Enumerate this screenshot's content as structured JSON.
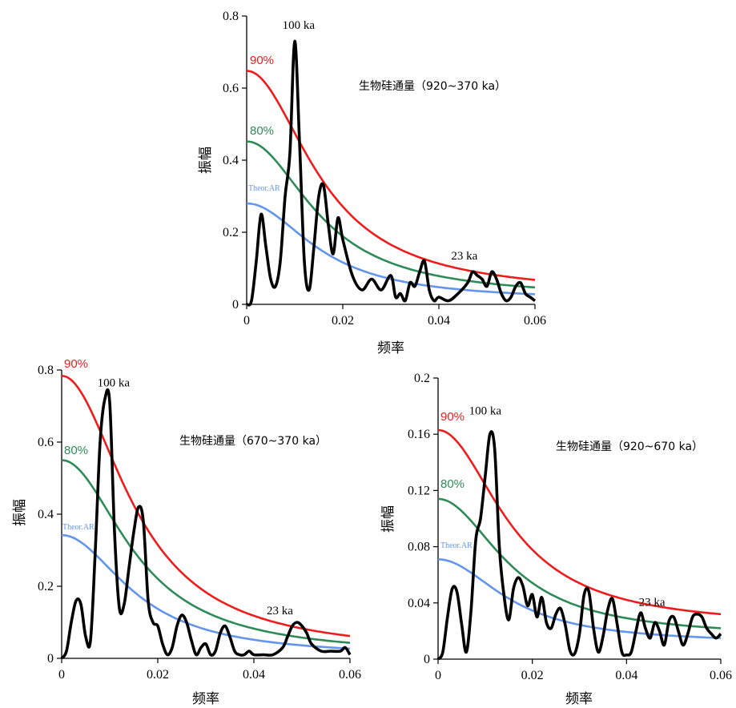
{
  "colors": {
    "spectrum": "#000000",
    "p90": "#ee1c1c",
    "p80": "#2e8b57",
    "theor": "#6495ed"
  },
  "chart_data": [
    {
      "id": "top",
      "type": "line",
      "title": "生物硅通量（920~370 ka）",
      "xlabel": "频率",
      "ylabel": "振幅",
      "xlim": [
        0,
        0.06
      ],
      "ylim": [
        0,
        0.8
      ],
      "xticks": [
        "0",
        "0.02",
        "0.04",
        "0.06"
      ],
      "yticks": [
        "0",
        "0.2",
        "0.4",
        "0.6",
        "0.8"
      ],
      "xtick_values": [
        0,
        0.02,
        0.04,
        0.06
      ],
      "ytick_values": [
        0,
        0.2,
        0.4,
        0.6,
        0.8
      ],
      "series": [
        {
          "name": "spectrum",
          "x": [
            0,
            0.001,
            0.002,
            0.003,
            0.004,
            0.005,
            0.006,
            0.007,
            0.008,
            0.009,
            0.01,
            0.011,
            0.012,
            0.013,
            0.014,
            0.015,
            0.016,
            0.017,
            0.018,
            0.019,
            0.02,
            0.022,
            0.024,
            0.026,
            0.028,
            0.03,
            0.031,
            0.032,
            0.033,
            0.034,
            0.035,
            0.036,
            0.037,
            0.038,
            0.039,
            0.04,
            0.042,
            0.044,
            0.046,
            0.047,
            0.048,
            0.049,
            0.05,
            0.051,
            0.052,
            0.053,
            0.054,
            0.055,
            0.056,
            0.057,
            0.058,
            0.059,
            0.06
          ],
          "values": [
            0,
            0.01,
            0.12,
            0.25,
            0.16,
            0.07,
            0.05,
            0.12,
            0.3,
            0.42,
            0.73,
            0.45,
            0.12,
            0.04,
            0.16,
            0.3,
            0.33,
            0.22,
            0.14,
            0.24,
            0.18,
            0.08,
            0.04,
            0.07,
            0.04,
            0.08,
            0.02,
            0.03,
            0.01,
            0.06,
            0.05,
            0.09,
            0.12,
            0.04,
            0.01,
            0.02,
            0.01,
            0.03,
            0.06,
            0.09,
            0.08,
            0.07,
            0.05,
            0.09,
            0.07,
            0.03,
            0.01,
            0.02,
            0.05,
            0.06,
            0.03,
            0.02,
            0.01
          ]
        },
        {
          "name": "90%",
          "y0": 0.648,
          "yend": 0.068
        },
        {
          "name": "80%",
          "y0": 0.452,
          "yend": 0.047
        },
        {
          "name": "Theor.AR",
          "y0": 0.28,
          "yend": 0.028
        }
      ],
      "annotations": [
        {
          "text": "100 ka",
          "x": 0.0108,
          "y": 0.765
        },
        {
          "text": "23 ka",
          "x": 0.0453,
          "y": 0.125
        }
      ]
    },
    {
      "id": "bottom-left",
      "type": "line",
      "title": "生物硅通量（670~370 ka）",
      "xlabel": "频率",
      "ylabel": "振幅",
      "xlim": [
        0,
        0.06
      ],
      "ylim": [
        0,
        0.8
      ],
      "xticks": [
        "0",
        "0.02",
        "0.04",
        "0.06"
      ],
      "yticks": [
        "0",
        "0.2",
        "0.4",
        "0.6",
        "0.8"
      ],
      "xtick_values": [
        0,
        0.02,
        0.04,
        0.06
      ],
      "ytick_values": [
        0,
        0.2,
        0.4,
        0.6,
        0.8
      ],
      "series": [
        {
          "name": "spectrum",
          "x": [
            0,
            0.001,
            0.002,
            0.003,
            0.004,
            0.005,
            0.006,
            0.007,
            0.008,
            0.009,
            0.01,
            0.011,
            0.012,
            0.013,
            0.014,
            0.015,
            0.016,
            0.017,
            0.018,
            0.019,
            0.02,
            0.021,
            0.022,
            0.023,
            0.024,
            0.025,
            0.026,
            0.027,
            0.028,
            0.029,
            0.03,
            0.031,
            0.032,
            0.033,
            0.034,
            0.035,
            0.036,
            0.037,
            0.038,
            0.039,
            0.04,
            0.042,
            0.044,
            0.046,
            0.047,
            0.048,
            0.049,
            0.05,
            0.051,
            0.052,
            0.054,
            0.056,
            0.058,
            0.059,
            0.06
          ],
          "values": [
            0,
            0.02,
            0.1,
            0.16,
            0.15,
            0.06,
            0.05,
            0.3,
            0.6,
            0.72,
            0.71,
            0.35,
            0.14,
            0.15,
            0.25,
            0.35,
            0.42,
            0.38,
            0.16,
            0.1,
            0.09,
            0.04,
            0.01,
            0.03,
            0.09,
            0.12,
            0.1,
            0.05,
            0.01,
            0.03,
            0.04,
            0.01,
            0.02,
            0.07,
            0.09,
            0.06,
            0.02,
            0.01,
            0.01,
            0.02,
            0.01,
            0.01,
            0.01,
            0.03,
            0.06,
            0.09,
            0.1,
            0.09,
            0.07,
            0.04,
            0.02,
            0.02,
            0.02,
            0.03,
            0.01
          ]
        },
        {
          "name": "90%",
          "y0": 0.784,
          "yend": 0.062
        },
        {
          "name": "80%",
          "y0": 0.55,
          "yend": 0.043
        },
        {
          "name": "Theor.AR",
          "y0": 0.342,
          "yend": 0.027
        }
      ],
      "annotations": [
        {
          "text": "100 ka",
          "x": 0.0108,
          "y": 0.755
        },
        {
          "text": "23 ka",
          "x": 0.0454,
          "y": 0.122
        }
      ]
    },
    {
      "id": "bottom-right",
      "type": "line",
      "title": "生物硅通量（920~670 ka）",
      "xlabel": "频率",
      "ylabel": "振幅",
      "xlim": [
        0,
        0.06
      ],
      "ylim": [
        0,
        0.2
      ],
      "xticks": [
        "0",
        "0.02",
        "0.04",
        "0.06"
      ],
      "yticks": [
        "0",
        "0.04",
        "0.08",
        "0.12",
        "0.16",
        "0.2"
      ],
      "xtick_values": [
        0,
        0.02,
        0.04,
        0.06
      ],
      "ytick_values": [
        0,
        0.04,
        0.08,
        0.12,
        0.16,
        0.2
      ],
      "series": [
        {
          "name": "spectrum",
          "x": [
            0,
            0.001,
            0.002,
            0.003,
            0.004,
            0.005,
            0.006,
            0.007,
            0.008,
            0.009,
            0.01,
            0.011,
            0.012,
            0.013,
            0.014,
            0.015,
            0.016,
            0.017,
            0.018,
            0.019,
            0.02,
            0.021,
            0.022,
            0.023,
            0.024,
            0.025,
            0.026,
            0.027,
            0.028,
            0.029,
            0.03,
            0.031,
            0.032,
            0.033,
            0.034,
            0.035,
            0.036,
            0.037,
            0.038,
            0.039,
            0.04,
            0.041,
            0.042,
            0.043,
            0.044,
            0.045,
            0.046,
            0.047,
            0.048,
            0.049,
            0.05,
            0.051,
            0.052,
            0.053,
            0.054,
            0.055,
            0.056,
            0.057,
            0.058,
            0.059,
            0.06
          ],
          "values": [
            0,
            0.005,
            0.03,
            0.05,
            0.048,
            0.025,
            0.005,
            0.035,
            0.085,
            0.1,
            0.13,
            0.16,
            0.15,
            0.08,
            0.045,
            0.028,
            0.05,
            0.058,
            0.052,
            0.038,
            0.046,
            0.03,
            0.044,
            0.026,
            0.022,
            0.032,
            0.036,
            0.024,
            0.006,
            0.004,
            0.018,
            0.046,
            0.048,
            0.022,
            0.005,
            0.016,
            0.035,
            0.043,
            0.025,
            0.005,
            0.003,
            0.005,
            0.02,
            0.033,
            0.022,
            0.015,
            0.026,
            0.02,
            0.01,
            0.027,
            0.03,
            0.02,
            0.01,
            0.018,
            0.03,
            0.032,
            0.03,
            0.022,
            0.018,
            0.015,
            0.018
          ]
        },
        {
          "name": "90%",
          "y0": 0.163,
          "yend": 0.032
        },
        {
          "name": "80%",
          "y0": 0.114,
          "yend": 0.022
        },
        {
          "name": "Theor.AR",
          "y0": 0.071,
          "yend": 0.015
        }
      ],
      "annotations": [
        {
          "text": "100 ka",
          "x": 0.01,
          "y": 0.174
        },
        {
          "text": "23 ka",
          "x": 0.0454,
          "y": 0.038
        }
      ]
    }
  ]
}
